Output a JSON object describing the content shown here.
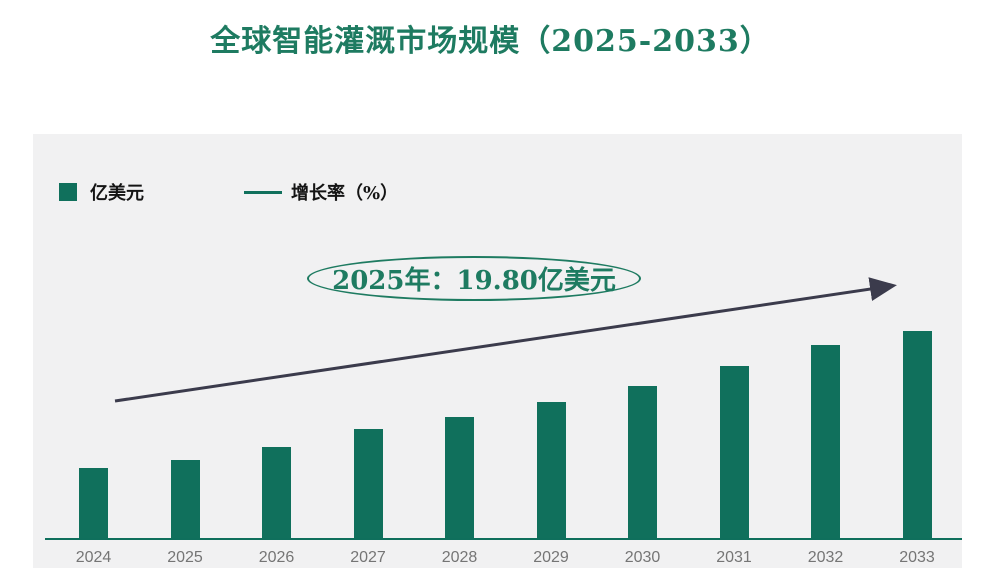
{
  "title": "全球智能灌溉市场规模（2025-2033）",
  "legend": {
    "bar_label": "亿美元",
    "line_label": "增长率（%）"
  },
  "annotation": {
    "text": "2025年：19.80亿美元"
  },
  "colors": {
    "title_green": "#1E7B61",
    "bar_green": "#10705C",
    "axis_green": "#0F6F5C",
    "arrow_dark": "#3B3B4C",
    "tick_label_gray": "#757575",
    "legend_text": "#141414",
    "card_background": "#F1F1F2",
    "page_background": "#FFFFFF"
  },
  "chart_data": {
    "type": "bar",
    "title": "全球智能灌溉市场规模（2025-2033）",
    "categories": [
      "2024",
      "2025",
      "2026",
      "2027",
      "2028",
      "2029",
      "2030",
      "2031",
      "2032",
      "2033"
    ],
    "series": [
      {
        "name": "亿美元",
        "type": "bar",
        "values": [
          17.8,
          19.8,
          22.9,
          27.5,
          30.5,
          34.0,
          38.2,
          43.0,
          48.4,
          51.9
        ]
      },
      {
        "name": "增长率（%）",
        "type": "line",
        "note": "rendered only as a straight upward trend arrow, no data points or values shown"
      }
    ],
    "xlabel": "",
    "ylabel": "",
    "ylim": [
      0,
      55
    ],
    "y_axis_visible": false,
    "grid": false,
    "legend_position": "top-left",
    "annotation": "2025年：19.80亿美元"
  }
}
